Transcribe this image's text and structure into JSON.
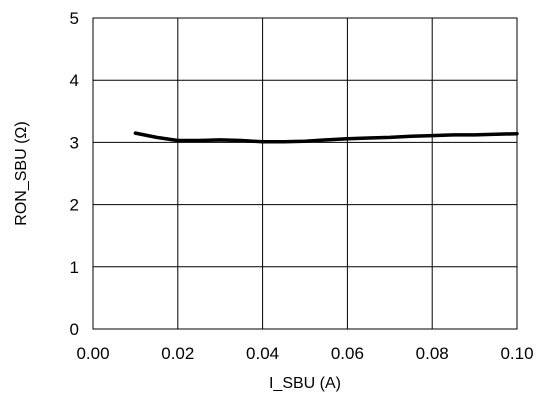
{
  "chart_data": {
    "type": "line",
    "title": "",
    "xlabel": "I_SBU (A)",
    "ylabel": "RON_SBU (Ω)",
    "xlim": [
      0.0,
      0.1
    ],
    "ylim": [
      0,
      5
    ],
    "x_ticks": [
      0.0,
      0.02,
      0.04,
      0.06,
      0.08,
      0.1
    ],
    "x_tick_labels": [
      "0.00",
      "0.02",
      "0.04",
      "0.06",
      "0.08",
      "0.10"
    ],
    "y_ticks": [
      0,
      1,
      2,
      3,
      4,
      5
    ],
    "y_tick_labels": [
      "0",
      "1",
      "2",
      "3",
      "4",
      "5"
    ],
    "grid": true,
    "legend": "none",
    "series": [
      {
        "color": "#000000",
        "x": [
          0.01,
          0.015,
          0.02,
          0.025,
          0.03,
          0.035,
          0.04,
          0.045,
          0.05,
          0.055,
          0.06,
          0.065,
          0.07,
          0.075,
          0.08,
          0.085,
          0.09,
          0.095,
          0.1
        ],
        "y": [
          3.15,
          3.08,
          3.03,
          3.03,
          3.04,
          3.03,
          3.01,
          3.01,
          3.02,
          3.04,
          3.06,
          3.07,
          3.08,
          3.1,
          3.11,
          3.12,
          3.12,
          3.13,
          3.14
        ]
      }
    ]
  }
}
